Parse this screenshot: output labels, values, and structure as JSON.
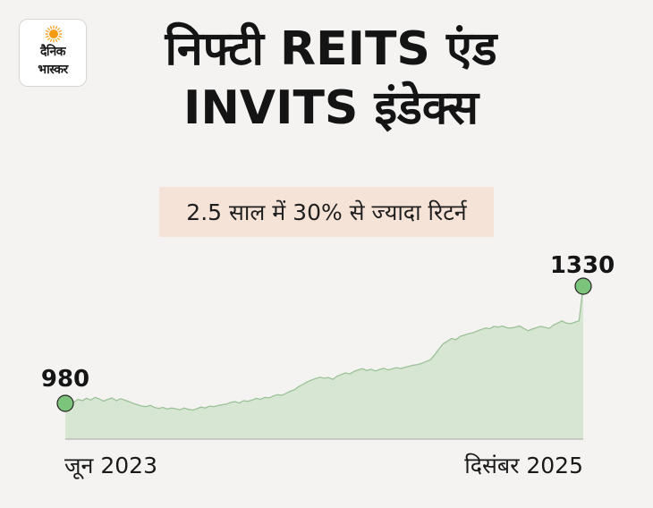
{
  "logo": {
    "line1": "दैनिक",
    "line2": "भास्कर",
    "sun_color": "#f39c12"
  },
  "title": {
    "line1": "निफ्टी REITS एंड",
    "line2": "INVITS इंडेक्स"
  },
  "subtitle": "2.5 साल में 30% से ज्यादा रिटर्न",
  "chart_data": {
    "type": "area",
    "title": "निफ्टी REITS एंड INVITS इंडेक्स",
    "subtitle": "2.5 साल में 30% से ज्यादा रिटर्न",
    "x_start_label": "जून 2023",
    "x_end_label": "दिसंबर 2025",
    "start_value": 980,
    "end_value": 1330,
    "start_label": "980",
    "end_label": "1330",
    "y_range": [
      900,
      1350
    ],
    "grid": false,
    "fill_color": "#d6e6d2",
    "line_color": "#9cc298",
    "marker_color": "#7cc47c",
    "values": [
      980,
      985,
      983,
      992,
      988,
      995,
      990,
      998,
      993,
      987,
      992,
      996,
      988,
      994,
      990,
      985,
      980,
      976,
      972,
      970,
      974,
      968,
      965,
      968,
      963,
      966,
      964,
      961,
      966,
      962,
      960,
      964,
      969,
      966,
      972,
      970,
      974,
      976,
      978,
      983,
      985,
      981,
      988,
      986,
      990,
      995,
      992,
      998,
      996,
      1002,
      1006,
      1004,
      1010,
      1016,
      1021,
      1030,
      1037,
      1044,
      1050,
      1054,
      1058,
      1055,
      1057,
      1052,
      1061,
      1066,
      1071,
      1068,
      1075,
      1080,
      1084,
      1078,
      1082,
      1077,
      1081,
      1085,
      1080,
      1083,
      1087,
      1084,
      1088,
      1091,
      1094,
      1096,
      1100,
      1105,
      1110,
      1125,
      1142,
      1158,
      1166,
      1174,
      1170,
      1180,
      1184,
      1188,
      1191,
      1196,
      1201,
      1205,
      1203,
      1210,
      1208,
      1211,
      1206,
      1205,
      1208,
      1211,
      1204,
      1197,
      1202,
      1206,
      1210,
      1207,
      1204,
      1214,
      1220,
      1226,
      1220,
      1218,
      1222,
      1227,
      1330
    ]
  },
  "axis_color": "#aaaaaa"
}
